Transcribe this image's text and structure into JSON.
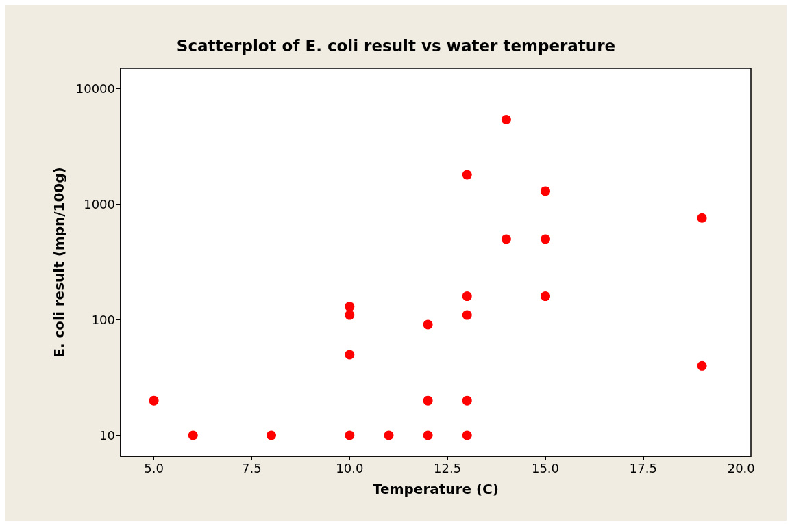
{
  "chart_data": {
    "type": "scatter",
    "title": "Scatterplot of E. coli result vs water temperature",
    "xlabel": "Temperature (C)",
    "ylabel": "E. coli result (mpn/100g)",
    "x": [
      5,
      6,
      8,
      10,
      11,
      12,
      13,
      10,
      10,
      10,
      12,
      12,
      13,
      13,
      13,
      13,
      14,
      14,
      15,
      15,
      15,
      19,
      19
    ],
    "series": [
      {
        "color": "#ff0000",
        "values": [
          20,
          10,
          10,
          10,
          10,
          10,
          10,
          50,
          110,
          130,
          91,
          20,
          20,
          110,
          160,
          1800,
          5400,
          500,
          1300,
          500,
          160,
          760,
          40
        ]
      }
    ],
    "log": "y",
    "xlim": [
      4.15,
      20.25
    ],
    "ylim": [
      6.6,
      15000
    ],
    "xticks": [
      {
        "value": 5,
        "label": "5.0"
      },
      {
        "value": 7.5,
        "label": "7.5"
      },
      {
        "value": 10,
        "label": "10.0"
      },
      {
        "value": 12.5,
        "label": "12.5"
      },
      {
        "value": 15,
        "label": "15.0"
      },
      {
        "value": 17.5,
        "label": "17.5"
      },
      {
        "value": 20,
        "label": "20.0"
      }
    ],
    "yticks": [
      10,
      100,
      1000,
      10000
    ],
    "grid": false,
    "marker": "circle"
  }
}
